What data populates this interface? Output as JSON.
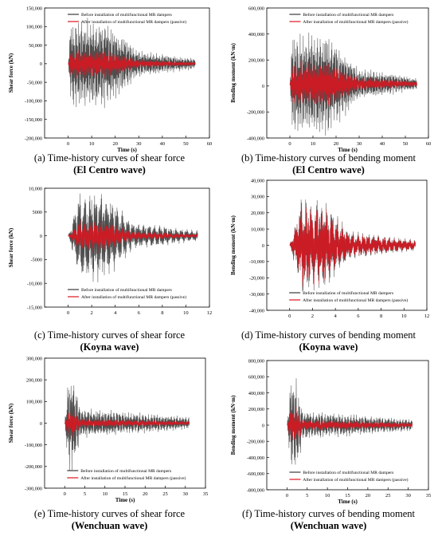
{
  "colors": {
    "before": "#3a3a3a",
    "after": "#e0141e",
    "axis": "#000000"
  },
  "chart_data": [
    {
      "type": "line",
      "xlabel": "Time (s)",
      "ylabel": "Shear force (kN)",
      "xlim": [
        -10,
        60
      ],
      "ylim": [
        -200000,
        150000
      ],
      "xticks": [
        "0",
        "10",
        "20",
        "30",
        "40",
        "50",
        "60"
      ],
      "yticks": [
        "150,000",
        "100,000",
        "50,000",
        "0",
        "-50,000",
        "-100,000",
        "-150,000",
        "-200,000"
      ],
      "legend_position": "top",
      "series": [
        {
          "name": "Before installation of multifunctional MR dampers",
          "peak": 128000,
          "duration": 54,
          "decay": 30
        },
        {
          "name": "After installation of multifunctional MR dampers (passive)",
          "peak": 45000,
          "duration": 54,
          "decay": 30
        }
      ],
      "caption": {
        "line1": "(a) Time-history curves of shear force",
        "line2": "(El Centro wave)"
      }
    },
    {
      "type": "line",
      "xlabel": "Time (s)",
      "ylabel": "Bending moment (kN·m)",
      "xlim": [
        -10,
        60
      ],
      "ylim": [
        -500000,
        700000
      ],
      "xticks": [
        "0",
        "10",
        "20",
        "30",
        "40",
        "50",
        "60"
      ],
      "yticks": [
        "600,000",
        "400,000",
        "200,000",
        "0",
        "-200,000",
        "-400,000"
      ],
      "legend_position": "top",
      "series": [
        {
          "name": "Before installation of multifunctional MR dampers",
          "peak": 520000,
          "duration": 55,
          "decay": 30
        },
        {
          "name": "After installation of multifunctional MR dampers (passive)",
          "peak": 250000,
          "duration": 55,
          "decay": 30
        }
      ],
      "caption": {
        "line1": "(b) Time-history curves of bending moment",
        "line2": "(El Centro wave)"
      }
    },
    {
      "type": "line",
      "xlabel": "",
      "ylabel": "Shear force (kN)",
      "xlim": [
        -2,
        12
      ],
      "ylim": [
        -15000,
        10000
      ],
      "xticks": [
        "0",
        "2",
        "4",
        "6",
        "8",
        "10",
        "12"
      ],
      "yticks": [
        "10,000",
        "5000",
        "0",
        "-5000",
        "-10,000",
        "-15,000"
      ],
      "legend_position": "bottom",
      "series": [
        {
          "name": "Before installation of multifunctional MR dampers",
          "peak": 10500,
          "duration": 11,
          "decay": 5.5
        },
        {
          "name": "After installation of multifunctional MR dampers (passive)",
          "peak": 4000,
          "duration": 11,
          "decay": 5.5
        }
      ],
      "caption": {
        "line1": "(c) Time-history curves of shear force",
        "line2": "(Koyna wave)"
      }
    },
    {
      "type": "line",
      "xlabel": "",
      "ylabel": "Bending moment (kN·m)",
      "xlim": [
        -2,
        12
      ],
      "ylim": [
        -40000,
        40000
      ],
      "xticks": [
        "0",
        "2",
        "4",
        "6",
        "8",
        "10",
        "12"
      ],
      "yticks": [
        "40,000",
        "30,000",
        "20,000",
        "10,000",
        "0",
        "-10,000",
        "-20,000",
        "-30,000",
        "-40,000"
      ],
      "legend_position": "bottom",
      "series": [
        {
          "name": "Before installation of multifunctional MR dampers",
          "peak": 32000,
          "duration": 11,
          "decay": 5.3
        },
        {
          "name": "After installation of multifunctional MR dampers (passive)",
          "peak": 30000,
          "duration": 11,
          "decay": 5.3
        }
      ],
      "caption": {
        "line1": "(d) Time-history curves of bending moment",
        "line2": "(Koyna wave)"
      }
    },
    {
      "type": "line",
      "xlabel": "Time (s)",
      "ylabel": "Shear force (kN)",
      "xlim": [
        -5,
        35
      ],
      "ylim": [
        -300000,
        300000
      ],
      "xticks": [
        "0",
        "5",
        "10",
        "15",
        "20",
        "25",
        "30",
        "35"
      ],
      "yticks": [
        "300,000",
        "200,000",
        "100,000",
        "0",
        "-100,000",
        "-200,000",
        "-300,000"
      ],
      "legend_position": "bottom",
      "series": [
        {
          "name": "Before installation of multifunctional MR dampers",
          "peak": 260000,
          "duration": 31,
          "decay": 4
        },
        {
          "name": "After installation of multifunctional MR dampers (passive)",
          "peak": 90000,
          "duration": 31,
          "decay": 4
        }
      ],
      "caption": {
        "line1": "(e) Time-history curves of shear force",
        "line2": "(Wenchuan wave)"
      }
    },
    {
      "type": "line",
      "xlabel": "Time (s)",
      "ylabel": "Bending moment (kN·m)",
      "xlim": [
        -5,
        35
      ],
      "ylim": [
        -800000,
        800000
      ],
      "xticks": [
        "0",
        "5",
        "10",
        "15",
        "20",
        "25",
        "30",
        "35"
      ],
      "yticks": [
        "800,000",
        "600,000",
        "400,000",
        "200,000",
        "0",
        "-200,000",
        "-400,000",
        "-600,000",
        "-800,000"
      ],
      "legend_position": "bottom",
      "series": [
        {
          "name": "Before installation of multifunctional MR dampers",
          "peak": 680000,
          "duration": 31,
          "decay": 4
        },
        {
          "name": "After installation of multifunctional MR dampers (passive)",
          "peak": 300000,
          "duration": 31,
          "decay": 4
        }
      ],
      "caption": {
        "line1": "(f) Time-history curves of bending moment",
        "line2": "(Wenchuan wave)"
      }
    }
  ]
}
